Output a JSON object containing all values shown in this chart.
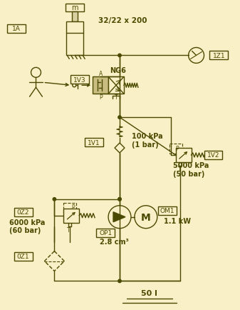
{
  "bg": "#FAF0C8",
  "lc": "#4A4A00",
  "lw": 1.0,
  "figsize": [
    3.37,
    4.35
  ],
  "dpi": 100,
  "labels": {
    "1A": "1A",
    "spec": "32/22 x 200",
    "m": "m",
    "1Z1": "1Z1",
    "1V3": "1V3",
    "NG6": "NG6",
    "1V1": "1V1",
    "p1": "100 kPa\n(1 bar)",
    "1V2": "1V2",
    "p2": "5000 kPa\n(50 bar)",
    "0Z2": "0Z2",
    "p3": "6000 kPa\n(60 bar)",
    "0Z1": "0Z1",
    "OP1": "OP1",
    "disp": "2.8 cm³",
    "OM1": "OM1",
    "power": "1.1 kW",
    "tank": "50 l",
    "A": "A",
    "P": "P",
    "T": "T"
  }
}
